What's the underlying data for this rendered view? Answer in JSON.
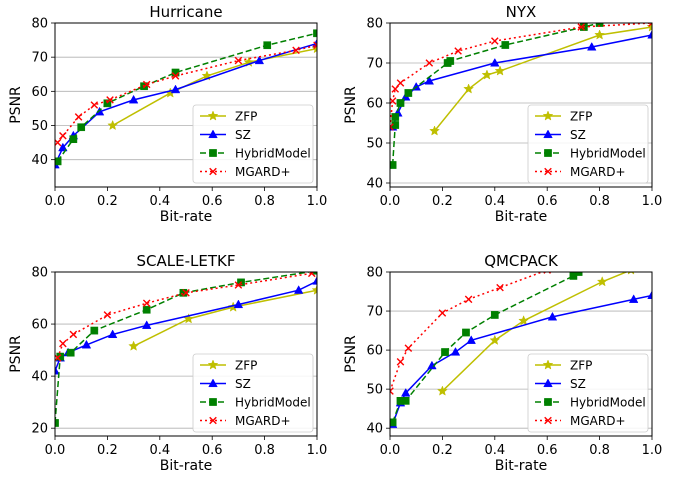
{
  "chart_data": [
    {
      "type": "line",
      "title": "Hurricane",
      "xlabel": "Bit-rate",
      "ylabel": "PSNR",
      "xlim": [
        0,
        1.0
      ],
      "ylim": [
        32,
        80
      ],
      "xticks": [
        0.0,
        0.2,
        0.4,
        0.6,
        0.8,
        1.0
      ],
      "xtick_labels": [
        "0.0",
        "0.2",
        "0.4",
        "0.6",
        "0.8",
        "1.0"
      ],
      "yticks": [
        40,
        50,
        60,
        70,
        80
      ],
      "ytick_labels": [
        "40",
        "50",
        "60",
        "70",
        "80"
      ],
      "grid": "horizontal",
      "legend": "lower right",
      "series": [
        {
          "name": "ZFP",
          "color": "#bfbf00",
          "dash": "solid",
          "marker": "star",
          "x": [
            0.22,
            0.44,
            0.58,
            0.74,
            1.0
          ],
          "y": [
            50,
            59.5,
            64.5,
            68.5,
            72.5
          ]
        },
        {
          "name": "SZ",
          "color": "#0000ff",
          "dash": "solid",
          "marker": "triangle",
          "x": [
            0.0,
            0.03,
            0.07,
            0.17,
            0.3,
            0.46,
            0.78,
            1.0
          ],
          "y": [
            38.5,
            43.5,
            47,
            54,
            57.5,
            60.5,
            69,
            74
          ]
        },
        {
          "name": "HybridModel",
          "color": "#008000",
          "dash": "dashed",
          "marker": "square",
          "x": [
            0.01,
            0.07,
            0.1,
            0.2,
            0.34,
            0.46,
            0.81,
            1.0
          ],
          "y": [
            39.5,
            46,
            49.5,
            56.5,
            61.5,
            65.5,
            73.5,
            77
          ]
        },
        {
          "name": "MGARD+",
          "color": "#ff0000",
          "dash": "dotted",
          "marker": "x",
          "x": [
            0.01,
            0.03,
            0.09,
            0.15,
            0.21,
            0.35,
            0.46,
            0.7,
            0.92,
            1.0
          ],
          "y": [
            45,
            47,
            52.5,
            56,
            57.5,
            62,
            64.5,
            69,
            72,
            73.5
          ]
        }
      ]
    },
    {
      "type": "line",
      "title": "NYX",
      "xlabel": "Bit-rate",
      "ylabel": "PSNR",
      "xlim": [
        0,
        1.0
      ],
      "ylim": [
        39,
        80
      ],
      "xticks": [
        0.0,
        0.2,
        0.4,
        0.6,
        0.8,
        1.0
      ],
      "xtick_labels": [
        "0.0",
        "0.2",
        "0.4",
        "0.6",
        "0.8",
        "1.0"
      ],
      "yticks": [
        40,
        50,
        60,
        70,
        80
      ],
      "ytick_labels": [
        "40",
        "50",
        "60",
        "70",
        "80"
      ],
      "grid": "horizontal",
      "legend": "lower right",
      "series": [
        {
          "name": "ZFP",
          "color": "#bfbf00",
          "dash": "solid",
          "marker": "star",
          "x": [
            0.17,
            0.3,
            0.37,
            0.42,
            0.8,
            1.0
          ],
          "y": [
            53,
            63.5,
            67,
            68,
            77,
            79
          ]
        },
        {
          "name": "SZ",
          "color": "#0000ff",
          "dash": "solid",
          "marker": "triangle",
          "x": [
            0.01,
            0.03,
            0.06,
            0.1,
            0.15,
            0.4,
            0.77,
            1.0
          ],
          "y": [
            54,
            57.5,
            61.5,
            64,
            65.5,
            70,
            74,
            77
          ]
        },
        {
          "name": "HybridModel",
          "color": "#008000",
          "dash": "dashed",
          "marker": "square",
          "x": [
            0.01,
            0.02,
            0.02,
            0.04,
            0.07,
            0.22,
            0.23,
            0.44,
            0.74,
            0.8
          ],
          "y": [
            44.5,
            54.5,
            56.5,
            60,
            62.5,
            70,
            70.5,
            74.5,
            79,
            80
          ]
        },
        {
          "name": "MGARD+",
          "color": "#ff0000",
          "dash": "dotted",
          "marker": "x",
          "x": [
            0.0,
            0.01,
            0.02,
            0.04,
            0.15,
            0.26,
            0.4,
            0.73,
            1.0
          ],
          "y": [
            54,
            60.5,
            63.5,
            65,
            70,
            73,
            75.5,
            79,
            80
          ]
        }
      ]
    },
    {
      "type": "line",
      "title": "SCALE-LETKF",
      "xlabel": "Bit-rate",
      "ylabel": "PSNR",
      "xlim": [
        0,
        1.0
      ],
      "ylim": [
        17,
        80
      ],
      "xticks": [
        0.0,
        0.2,
        0.4,
        0.6,
        0.8,
        1.0
      ],
      "xtick_labels": [
        "0.0",
        "0.2",
        "0.4",
        "0.6",
        "0.8",
        "1.0"
      ],
      "yticks": [
        20,
        40,
        60,
        80
      ],
      "ytick_labels": [
        "20",
        "40",
        "60",
        "80"
      ],
      "grid": "horizontal",
      "legend": "lower right",
      "series": [
        {
          "name": "ZFP",
          "color": "#bfbf00",
          "dash": "solid",
          "marker": "star",
          "x": [
            0.3,
            0.51,
            0.68,
            1.0
          ],
          "y": [
            51.5,
            62,
            66.5,
            73
          ]
        },
        {
          "name": "SZ",
          "color": "#0000ff",
          "dash": "solid",
          "marker": "triangle",
          "x": [
            0.0,
            0.02,
            0.05,
            0.12,
            0.22,
            0.35,
            0.7,
            0.93,
            1.0
          ],
          "y": [
            42,
            47,
            49,
            52,
            56,
            59.5,
            67.5,
            73,
            76.5
          ]
        },
        {
          "name": "HybridModel",
          "color": "#008000",
          "dash": "dashed",
          "marker": "square",
          "x": [
            0.0,
            0.02,
            0.06,
            0.15,
            0.35,
            0.49,
            0.71,
            1.0
          ],
          "y": [
            22,
            47.5,
            49,
            57.5,
            65.5,
            72,
            76,
            80.5
          ]
        },
        {
          "name": "MGARD+",
          "color": "#ff0000",
          "dash": "dotted",
          "marker": "x",
          "x": [
            0.01,
            0.03,
            0.07,
            0.2,
            0.35,
            0.5,
            0.7,
            0.98
          ],
          "y": [
            47,
            52.5,
            56,
            63.5,
            68,
            72,
            75,
            79.5
          ]
        }
      ]
    },
    {
      "type": "line",
      "title": "QMCPACK",
      "xlabel": "Bit-rate",
      "ylabel": "PSNR",
      "xlim": [
        0,
        1.0
      ],
      "ylim": [
        38,
        80
      ],
      "xticks": [
        0.0,
        0.2,
        0.4,
        0.6,
        0.8,
        1.0
      ],
      "xtick_labels": [
        "0.0",
        "0.2",
        "0.4",
        "0.6",
        "0.8",
        "1.0"
      ],
      "yticks": [
        40,
        50,
        60,
        70,
        80
      ],
      "ytick_labels": [
        "40",
        "50",
        "60",
        "70",
        "80"
      ],
      "grid": "horizontal",
      "legend": "lower right",
      "series": [
        {
          "name": "ZFP",
          "color": "#bfbf00",
          "dash": "solid",
          "marker": "star",
          "x": [
            0.2,
            0.4,
            0.51,
            0.81,
            0.92
          ],
          "y": [
            49.5,
            62.5,
            67.5,
            77.5,
            80.5
          ]
        },
        {
          "name": "SZ",
          "color": "#0000ff",
          "dash": "solid",
          "marker": "triangle",
          "x": [
            0.01,
            0.04,
            0.06,
            0.16,
            0.25,
            0.31,
            0.62,
            0.93,
            1.0
          ],
          "y": [
            41,
            46.5,
            49,
            56,
            59.5,
            62.5,
            68.5,
            73,
            74
          ]
        },
        {
          "name": "HybridModel",
          "color": "#008000",
          "dash": "dashed",
          "marker": "square",
          "x": [
            0.01,
            0.04,
            0.06,
            0.21,
            0.29,
            0.4,
            0.7,
            0.72
          ],
          "y": [
            41.5,
            47,
            47,
            59.5,
            64.5,
            69,
            79,
            80
          ]
        },
        {
          "name": "MGARD+",
          "color": "#ff0000",
          "dash": "dotted",
          "marker": "x",
          "x": [
            0.0,
            0.04,
            0.07,
            0.2,
            0.3,
            0.42,
            0.6
          ],
          "y": [
            49.5,
            57,
            60.5,
            69.5,
            73,
            76,
            80.5
          ]
        }
      ]
    }
  ]
}
